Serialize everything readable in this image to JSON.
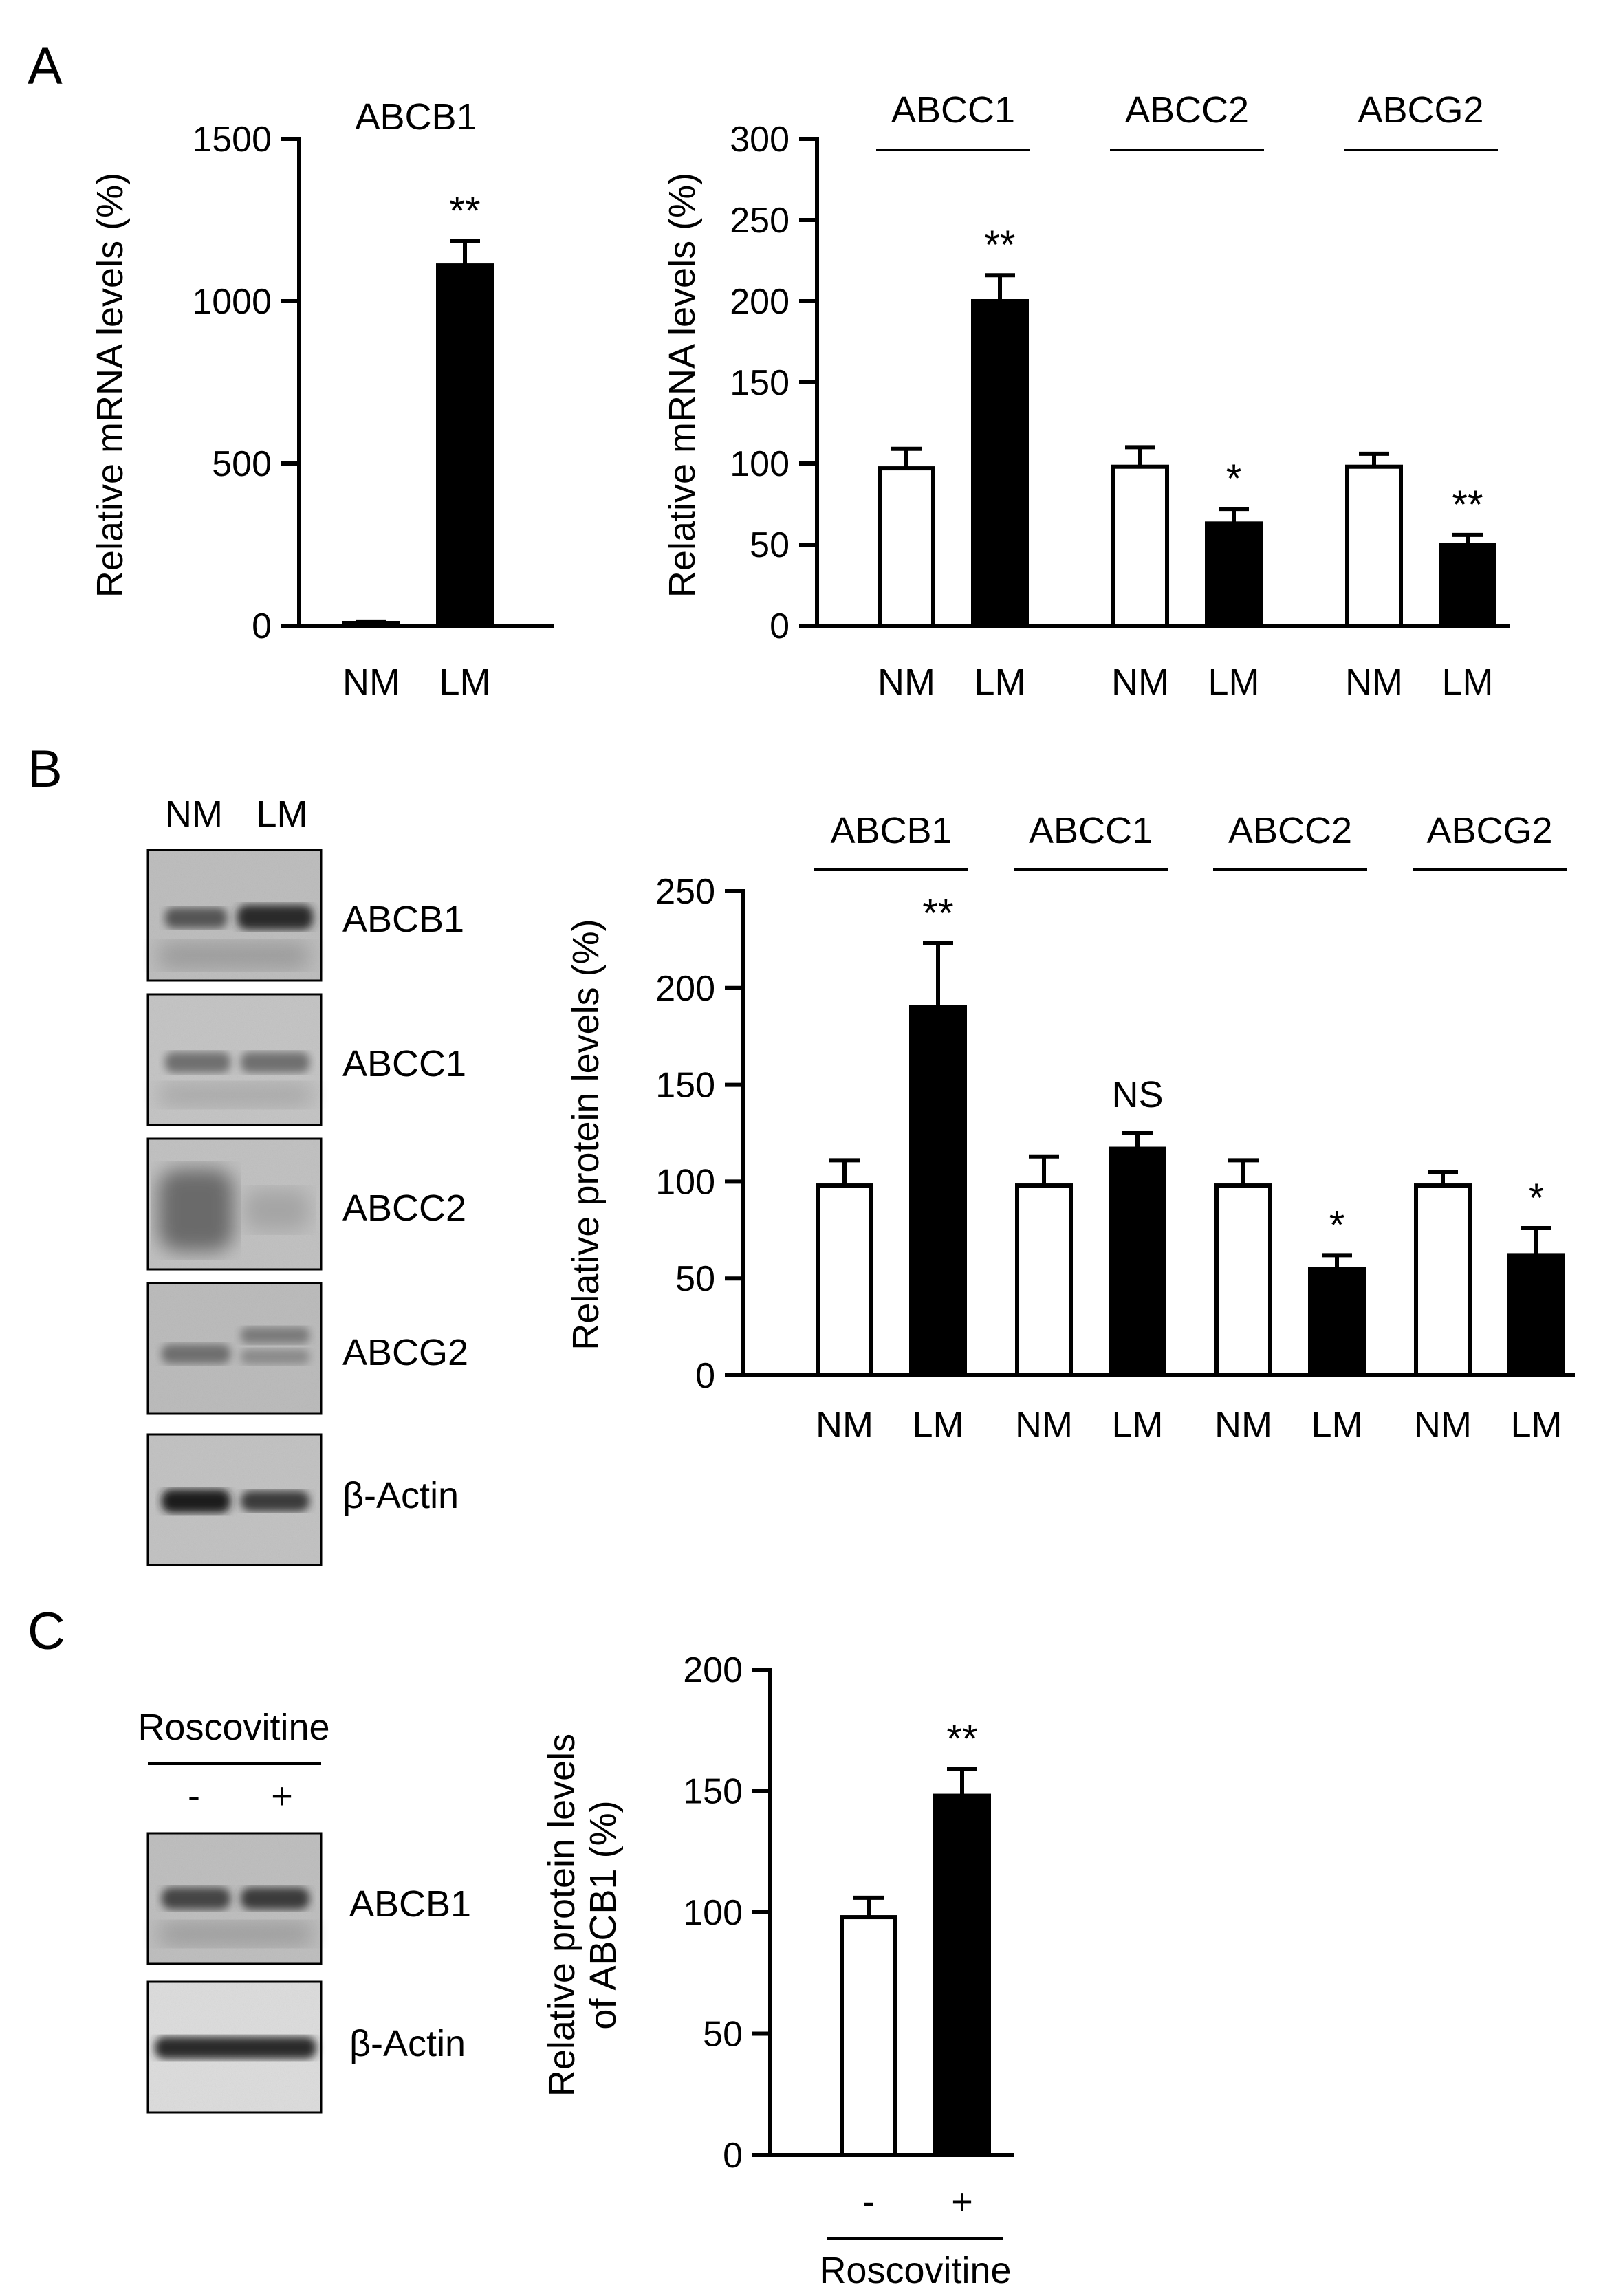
{
  "panel_labels": [
    "A",
    "B",
    "C"
  ],
  "blot_b": {
    "lanes": [
      "NM",
      "LM"
    ],
    "rows": [
      "ABCB1",
      "ABCC1",
      "ABCC2",
      "ABCG2",
      "β-Actin"
    ]
  },
  "blot_c": {
    "treatment": "Roscovitine",
    "lanes": [
      "-",
      "+"
    ],
    "rows": [
      "ABCB1",
      "β-Actin"
    ]
  },
  "chart_data": [
    {
      "id": "A-left",
      "type": "bar",
      "title": "ABCB1",
      "ylabel": "Relative mRNA levels (%)",
      "ylim": [
        0,
        1500
      ],
      "yticks": [
        0,
        500,
        1000,
        1500
      ],
      "categories": [
        "NM",
        "LM"
      ],
      "groups": [],
      "bars": [
        {
          "label": "NM",
          "value": 5,
          "error": 8,
          "fill": "white",
          "sig": ""
        },
        {
          "label": "LM",
          "value": 1110,
          "error": 75,
          "fill": "black",
          "sig": "**"
        }
      ]
    },
    {
      "id": "A-right",
      "type": "bar",
      "title": "",
      "ylabel": "Relative mRNA levels (%)",
      "ylim": [
        0,
        300
      ],
      "yticks": [
        0,
        50,
        100,
        150,
        200,
        250,
        300
      ],
      "categories": [
        "NM",
        "LM",
        "NM",
        "LM",
        "NM",
        "LM"
      ],
      "groups": [
        "ABCC1",
        "ABCC2",
        "ABCG2"
      ],
      "bars": [
        {
          "label": "NM",
          "value": 97,
          "error": 12,
          "fill": "white",
          "sig": ""
        },
        {
          "label": "LM",
          "value": 200,
          "error": 16,
          "fill": "black",
          "sig": "**"
        },
        {
          "label": "NM",
          "value": 98,
          "error": 12,
          "fill": "white",
          "sig": ""
        },
        {
          "label": "LM",
          "value": 63,
          "error": 9,
          "fill": "black",
          "sig": "*"
        },
        {
          "label": "NM",
          "value": 98,
          "error": 8,
          "fill": "white",
          "sig": ""
        },
        {
          "label": "LM",
          "value": 50,
          "error": 6,
          "fill": "black",
          "sig": "**"
        }
      ]
    },
    {
      "id": "B",
      "type": "bar",
      "title": "",
      "ylabel": "Relative protein levels (%)",
      "ylim": [
        0,
        250
      ],
      "yticks": [
        0,
        50,
        100,
        150,
        200,
        250
      ],
      "categories": [
        "NM",
        "LM",
        "NM",
        "LM",
        "NM",
        "LM",
        "NM",
        "LM"
      ],
      "groups": [
        "ABCB1",
        "ABCC1",
        "ABCC2",
        "ABCG2"
      ],
      "bars": [
        {
          "label": "NM",
          "value": 98,
          "error": 13,
          "fill": "white",
          "sig": ""
        },
        {
          "label": "LM",
          "value": 190,
          "error": 33,
          "fill": "black",
          "sig": "**"
        },
        {
          "label": "NM",
          "value": 98,
          "error": 15,
          "fill": "white",
          "sig": ""
        },
        {
          "label": "LM",
          "value": 117,
          "error": 8,
          "fill": "black",
          "sig": "NS"
        },
        {
          "label": "NM",
          "value": 98,
          "error": 13,
          "fill": "white",
          "sig": ""
        },
        {
          "label": "LM",
          "value": 55,
          "error": 7,
          "fill": "black",
          "sig": "*"
        },
        {
          "label": "NM",
          "value": 98,
          "error": 7,
          "fill": "white",
          "sig": ""
        },
        {
          "label": "LM",
          "value": 62,
          "error": 14,
          "fill": "black",
          "sig": "*"
        }
      ]
    },
    {
      "id": "C",
      "type": "bar",
      "title": "",
      "ylabel": "Relative protein levels",
      "ylabel2": "of ABCB1 (%)",
      "xlabel": "Roscovitine",
      "ylim": [
        0,
        200
      ],
      "yticks": [
        0,
        50,
        100,
        150,
        200
      ],
      "categories": [
        "-",
        "+"
      ],
      "groups": [],
      "bars": [
        {
          "label": "-",
          "value": 98,
          "error": 8,
          "fill": "white",
          "sig": ""
        },
        {
          "label": "+",
          "value": 148,
          "error": 11,
          "fill": "black",
          "sig": "**"
        }
      ]
    }
  ]
}
